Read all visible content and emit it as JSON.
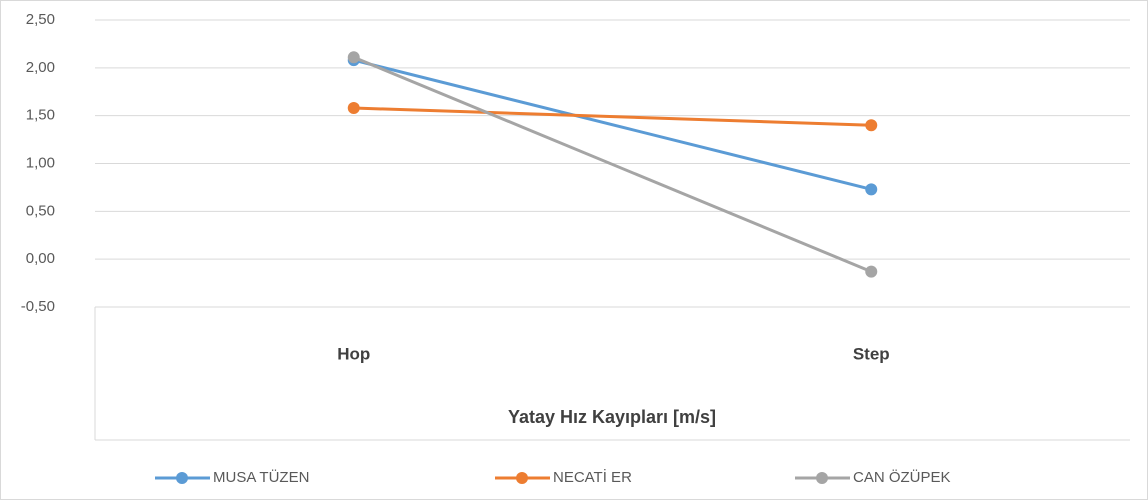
{
  "chart_data": {
    "type": "line",
    "x_label": "Yatay Hız Kayıpları  [m/s]",
    "categories": [
      "Hop",
      "Step"
    ],
    "series": [
      {
        "name": "MUSA TÜZEN",
        "color": "#5b9bd5",
        "values": [
          2.08,
          0.73
        ]
      },
      {
        "name": "NECATİ ER",
        "color": "#ed7d31",
        "values": [
          1.58,
          1.4
        ]
      },
      {
        "name": "CAN ÖZÜPEK",
        "color": "#a5a5a5",
        "values": [
          2.11,
          -0.13
        ]
      }
    ],
    "ylim": [
      -0.5,
      2.5
    ],
    "yticks": [
      {
        "value": -0.5,
        "label": "-0,50"
      },
      {
        "value": 0,
        "label": "0,00"
      },
      {
        "value": 0.5,
        "label": "0,50"
      },
      {
        "value": 1,
        "label": "1,00"
      },
      {
        "value": 1.5,
        "label": "1,50"
      },
      {
        "value": 2,
        "label": "2,00"
      },
      {
        "value": 2.5,
        "label": "2,50"
      }
    ],
    "grid": true,
    "legend": "bottom"
  }
}
